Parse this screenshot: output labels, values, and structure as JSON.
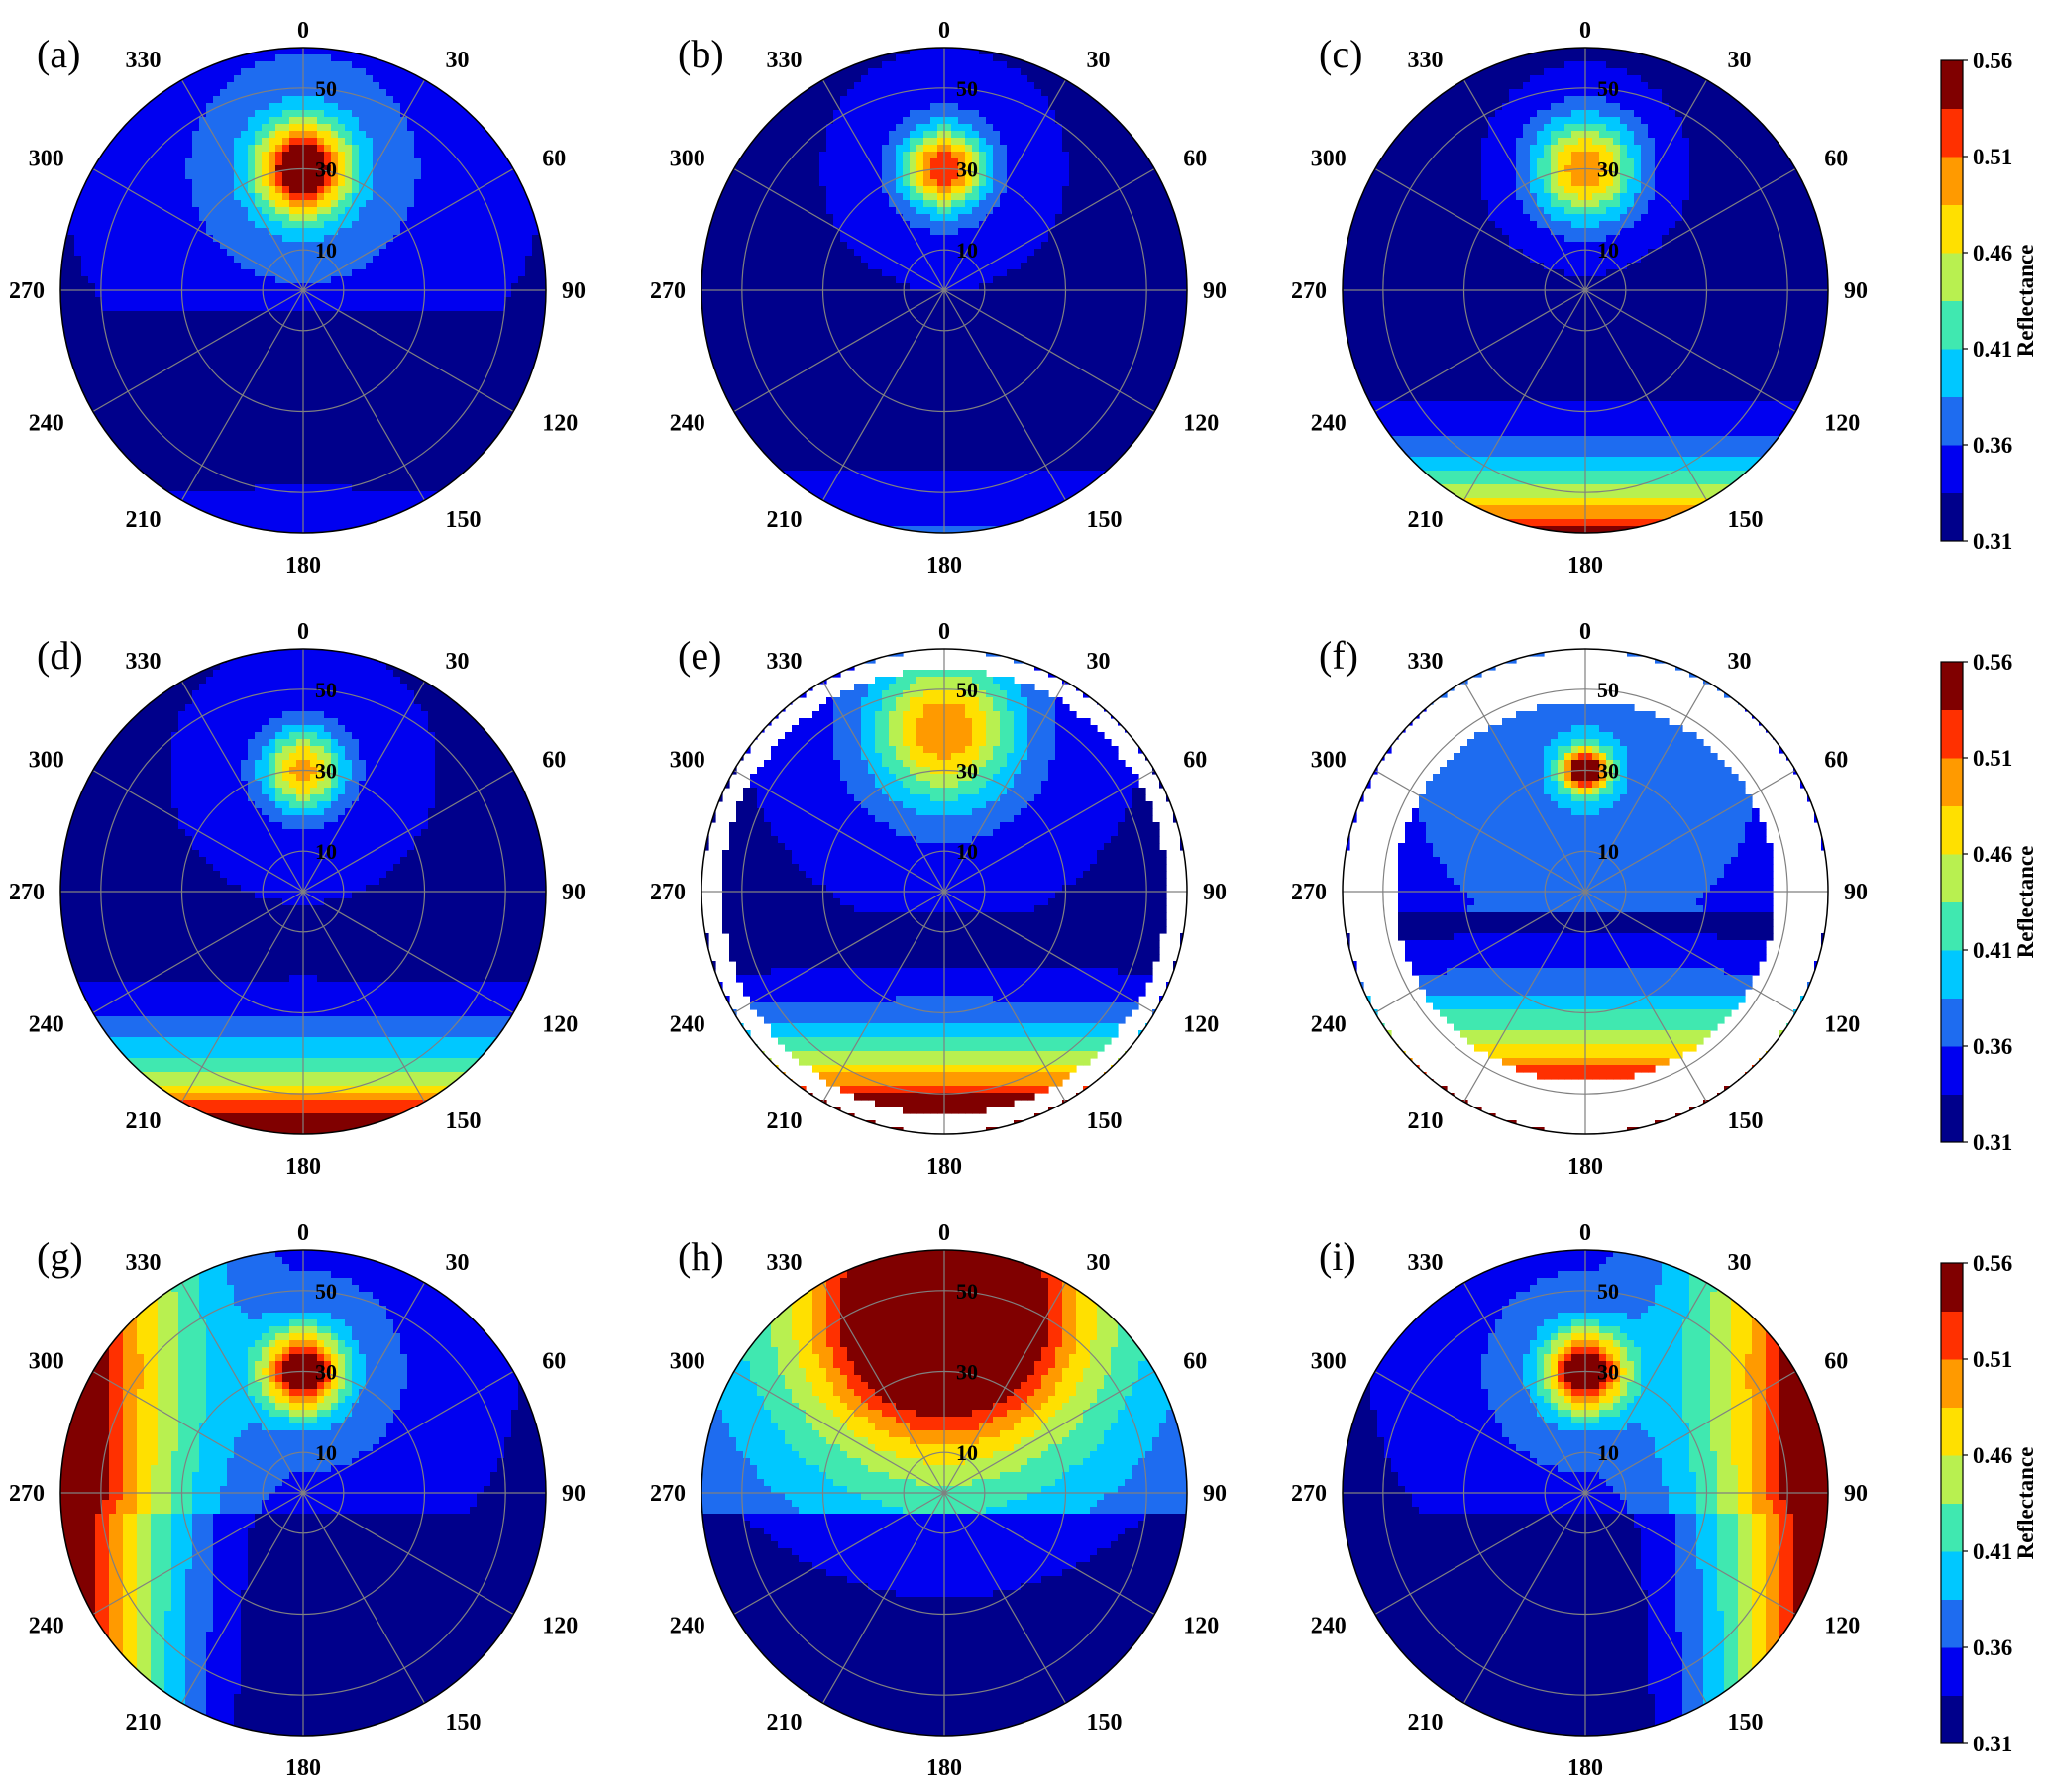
{
  "chart_data": {
    "type": "polar-contour",
    "colorbar": {
      "label": "Reflectance",
      "ticks": [
        "0.31",
        "0.36",
        "0.41",
        "0.46",
        "0.51",
        "0.56"
      ],
      "range": [
        0.31,
        0.56
      ],
      "colormap": "jet",
      "colors": [
        "#00008b",
        "#0000f0",
        "#1e6cf0",
        "#00c8ff",
        "#40e8b0",
        "#b8f050",
        "#ffe000",
        "#ff9a00",
        "#ff3000",
        "#800000"
      ]
    },
    "azimuth_labels": [
      "0",
      "30",
      "60",
      "90",
      "120",
      "150",
      "180",
      "210",
      "240",
      "270",
      "300",
      "330"
    ],
    "zenith_rings": [
      10,
      30,
      50
    ],
    "zenith_labels": [
      "10",
      "30",
      "50"
    ],
    "zenith_max": 60,
    "panels": [
      {
        "label": "(a)",
        "row": 0,
        "col": 0,
        "peak_zenith": 30,
        "peak_azimuth": 0,
        "peak_value": 0.53,
        "hotspot_width": 8,
        "background": 0.31,
        "forward_gradient": 0.02,
        "side_gradient": 0.0,
        "gradient_power": 2,
        "fill_to": 60,
        "ring_value": 0.42,
        "ring_zenith": 45
      },
      {
        "label": "(b)",
        "row": 0,
        "col": 1,
        "peak_zenith": 30,
        "peak_azimuth": 0,
        "peak_value": 0.5,
        "hotspot_width": 7,
        "background": 0.315,
        "forward_gradient": 0.03,
        "side_gradient": 0.0,
        "gradient_power": 3,
        "fill_to": 60,
        "ring_value": 0.38,
        "ring_zenith": 28
      },
      {
        "label": "(c)",
        "row": 0,
        "col": 2,
        "peak_zenith": 30,
        "peak_azimuth": 0,
        "peak_value": 0.47,
        "hotspot_width": 9,
        "background": 0.31,
        "forward_gradient": 0.15,
        "side_gradient": 0.0,
        "gradient_power": 3,
        "fill_to": 60,
        "ring_value": 0.37,
        "ring_zenith": 30
      },
      {
        "label": "(d)",
        "row": 1,
        "col": 0,
        "peak_zenith": 30,
        "peak_azimuth": 0,
        "peak_value": 0.47,
        "hotspot_width": 7,
        "background": 0.32,
        "forward_gradient": 0.18,
        "side_gradient": 0.0,
        "gradient_power": 3,
        "fill_to": 60,
        "ring_value": 0.37,
        "ring_zenith": 30
      },
      {
        "label": "(e)",
        "row": 1,
        "col": 1,
        "peak_zenith": 40,
        "peak_azimuth": 0,
        "peak_value": 0.46,
        "hotspot_width": 12,
        "background": 0.31,
        "forward_gradient": 0.22,
        "side_gradient": 0.0,
        "gradient_power": 2.5,
        "fill_to": 55,
        "ring_value": 0.4,
        "ring_zenith": 42
      },
      {
        "label": "(f)",
        "row": 1,
        "col": 2,
        "peak_zenith": 30,
        "peak_azimuth": 0,
        "peak_value": 0.52,
        "hotspot_width": 4,
        "background": 0.31,
        "forward_gradient": 0.23,
        "side_gradient": 0.0,
        "gradient_power": 2,
        "fill_to": 47,
        "ring_value": 0.44,
        "ring_zenith": 50
      },
      {
        "label": "(g)",
        "row": 2,
        "col": 0,
        "peak_zenith": 30,
        "peak_azimuth": 0,
        "peak_value": 0.52,
        "hotspot_width": 7,
        "background": 0.31,
        "forward_gradient": 0.0,
        "side_gradient": 0.22,
        "gradient_power": 2,
        "side_dir": -1,
        "fill_to": 60,
        "ring_value": 0.42,
        "ring_zenith": 40
      },
      {
        "label": "(h)",
        "row": 2,
        "col": 1,
        "peak_zenith": 45,
        "peak_azimuth": 0,
        "peak_value": 0.56,
        "hotspot_width": 20,
        "background": 0.32,
        "forward_gradient": 0.0,
        "side_gradient": 0.0,
        "gradient_power": 2,
        "fill_to": 60,
        "ring_value": 0.56,
        "ring_zenith": 50
      },
      {
        "label": "(i)",
        "row": 2,
        "col": 2,
        "peak_zenith": 30,
        "peak_azimuth": 0,
        "peak_value": 0.52,
        "hotspot_width": 7,
        "background": 0.31,
        "forward_gradient": 0.0,
        "side_gradient": 0.22,
        "gradient_power": 2,
        "side_dir": 1,
        "fill_to": 60,
        "ring_value": 0.42,
        "ring_zenith": 40
      }
    ]
  }
}
